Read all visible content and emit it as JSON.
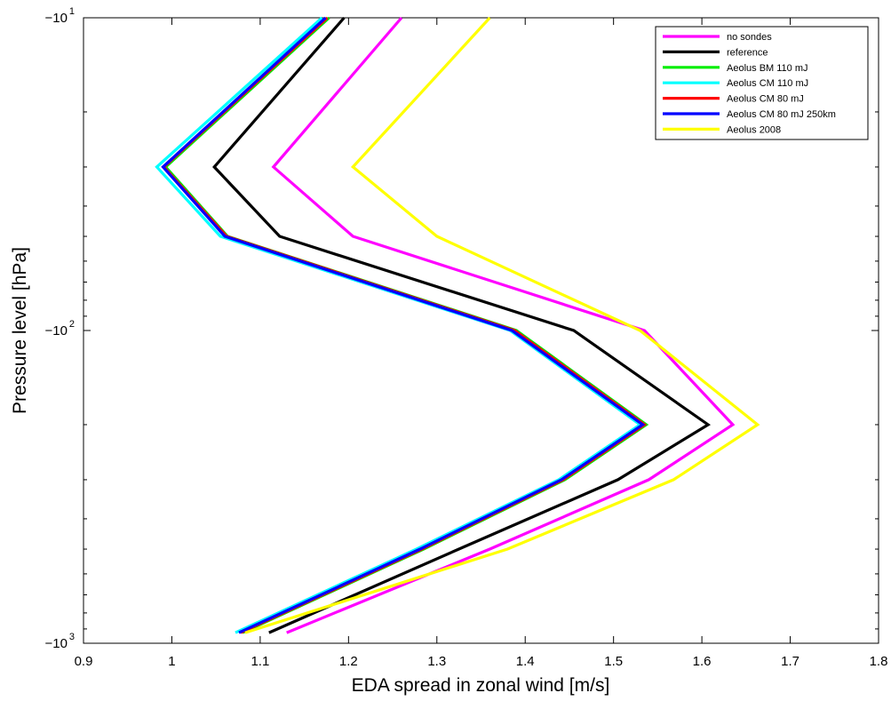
{
  "chart_data": {
    "type": "line",
    "xlabel": "EDA spread in zonal wind [m/s]",
    "ylabel": "Pressure level [hPa]",
    "xlim": [
      0.9,
      1.8
    ],
    "ylim": [
      -1000,
      -10
    ],
    "y_scale": "log (negated pressure)",
    "x_ticks": [
      "0.9",
      "1",
      "1.1",
      "1.2",
      "1.3",
      "1.4",
      "1.5",
      "1.6",
      "1.7",
      "1.8"
    ],
    "y_ticks": [
      {
        "base": "−10",
        "exp": "1"
      },
      {
        "base": "−10",
        "exp": "2"
      },
      {
        "base": "−10",
        "exp": "3"
      }
    ],
    "grid": false,
    "legend_position": "top-right",
    "y": [
      -10,
      -30,
      -50,
      -100,
      -200,
      -300,
      -500,
      -925
    ],
    "series": [
      {
        "name": "no sondes",
        "color": "#ff00ff",
        "values": [
          1.26,
          1.115,
          1.205,
          1.535,
          1.635,
          1.54,
          1.36,
          1.13
        ]
      },
      {
        "name": "reference",
        "color": "#000000",
        "values": [
          1.195,
          1.048,
          1.122,
          1.455,
          1.607,
          1.505,
          1.325,
          1.11
        ]
      },
      {
        "name": "Aeolus BM 110 mJ",
        "color": "#00ee00",
        "values": [
          1.178,
          0.993,
          1.063,
          1.39,
          1.537,
          1.445,
          1.285,
          1.08
        ]
      },
      {
        "name": "Aeolus CM 110 mJ",
        "color": "#00ffff",
        "values": [
          1.17,
          0.983,
          1.055,
          1.383,
          1.53,
          1.438,
          1.277,
          1.072
        ]
      },
      {
        "name": "Aeolus CM 80 mJ",
        "color": "#ff0000",
        "values": [
          1.176,
          0.991,
          1.062,
          1.388,
          1.535,
          1.443,
          1.283,
          1.078
        ]
      },
      {
        "name": "Aeolus CM 80 mJ 250km",
        "color": "#0000ff",
        "values": [
          1.174,
          0.99,
          1.06,
          1.385,
          1.533,
          1.441,
          1.281,
          1.076
        ]
      },
      {
        "name": "Aeolus 2008",
        "color": "#ffff00",
        "values": [
          1.36,
          1.205,
          1.3,
          1.53,
          1.663,
          1.568,
          1.38,
          1.083
        ]
      }
    ]
  }
}
